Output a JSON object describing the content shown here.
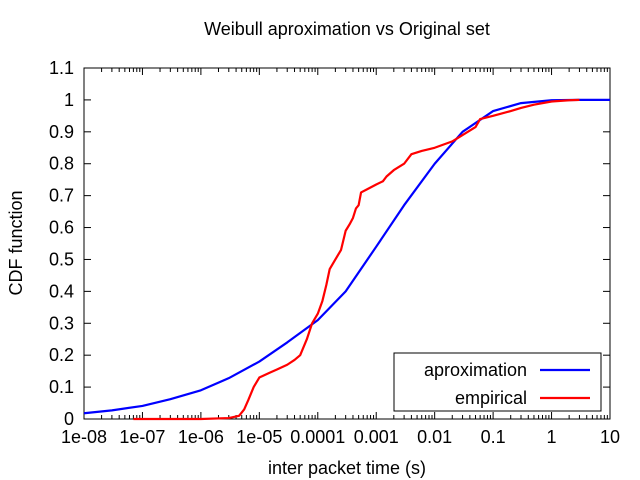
{
  "chart_data": {
    "type": "line",
    "title": "Weibull aproximation vs Original set",
    "xlabel": "inter packet time (s)",
    "ylabel": "CDF function",
    "xscale": "log",
    "xlim": [
      1e-08,
      10
    ],
    "ylim": [
      0,
      1.1
    ],
    "xticks": [
      "1e-08",
      "1e-07",
      "1e-06",
      "1e-05",
      "0.0001",
      "0.001",
      "0.01",
      "0.1",
      "1",
      "10"
    ],
    "yticks": [
      "0",
      "0.1",
      "0.2",
      "0.3",
      "0.4",
      "0.5",
      "0.6",
      "0.7",
      "0.8",
      "0.9",
      "1",
      "1.1"
    ],
    "grid": false,
    "legend_position": "bottom-right",
    "series": [
      {
        "name": "aproximation",
        "color": "#0000ff",
        "points": [
          [
            1e-08,
            0.018
          ],
          [
            3e-08,
            0.027
          ],
          [
            1e-07,
            0.041
          ],
          [
            3e-07,
            0.062
          ],
          [
            1e-06,
            0.09
          ],
          [
            3e-06,
            0.128
          ],
          [
            1e-05,
            0.18
          ],
          [
            3e-05,
            0.24
          ],
          [
            0.0001,
            0.31
          ],
          [
            0.0003,
            0.4
          ],
          [
            0.001,
            0.54
          ],
          [
            0.003,
            0.67
          ],
          [
            0.01,
            0.8
          ],
          [
            0.03,
            0.9
          ],
          [
            0.1,
            0.965
          ],
          [
            0.3,
            0.99
          ],
          [
            1,
            0.999
          ],
          [
            3,
            1.0
          ],
          [
            10,
            1.0
          ]
        ]
      },
      {
        "name": "empirical",
        "color": "#ff0000",
        "points": [
          [
            7e-08,
            0.0
          ],
          [
            2e-07,
            0.0
          ],
          [
            1e-06,
            0.0
          ],
          [
            3e-06,
            0.003
          ],
          [
            4.5e-06,
            0.01
          ],
          [
            5.5e-06,
            0.03
          ],
          [
            6.5e-06,
            0.06
          ],
          [
            8e-06,
            0.1
          ],
          [
            1e-05,
            0.13
          ],
          [
            1.5e-05,
            0.145
          ],
          [
            2e-05,
            0.155
          ],
          [
            3e-05,
            0.17
          ],
          [
            4e-05,
            0.185
          ],
          [
            5e-05,
            0.2
          ],
          [
            6.5e-05,
            0.25
          ],
          [
            8e-05,
            0.3
          ],
          [
            0.0001,
            0.33
          ],
          [
            0.00012,
            0.37
          ],
          [
            0.00014,
            0.42
          ],
          [
            0.00016,
            0.47
          ],
          [
            0.0002,
            0.5
          ],
          [
            0.00025,
            0.53
          ],
          [
            0.0003,
            0.59
          ],
          [
            0.00035,
            0.61
          ],
          [
            0.0004,
            0.63
          ],
          [
            0.00045,
            0.66
          ],
          [
            0.0005,
            0.67
          ],
          [
            0.00055,
            0.71
          ],
          [
            0.0007,
            0.72
          ],
          [
            0.001,
            0.735
          ],
          [
            0.0013,
            0.745
          ],
          [
            0.0015,
            0.76
          ],
          [
            0.002,
            0.78
          ],
          [
            0.003,
            0.8
          ],
          [
            0.004,
            0.83
          ],
          [
            0.006,
            0.84
          ],
          [
            0.01,
            0.85
          ],
          [
            0.02,
            0.87
          ],
          [
            0.03,
            0.89
          ],
          [
            0.05,
            0.915
          ],
          [
            0.06,
            0.94
          ],
          [
            0.1,
            0.95
          ],
          [
            0.2,
            0.965
          ],
          [
            0.3,
            0.975
          ],
          [
            0.5,
            0.985
          ],
          [
            1,
            0.995
          ],
          [
            2,
            0.999
          ],
          [
            3,
            1.0
          ]
        ]
      }
    ]
  }
}
